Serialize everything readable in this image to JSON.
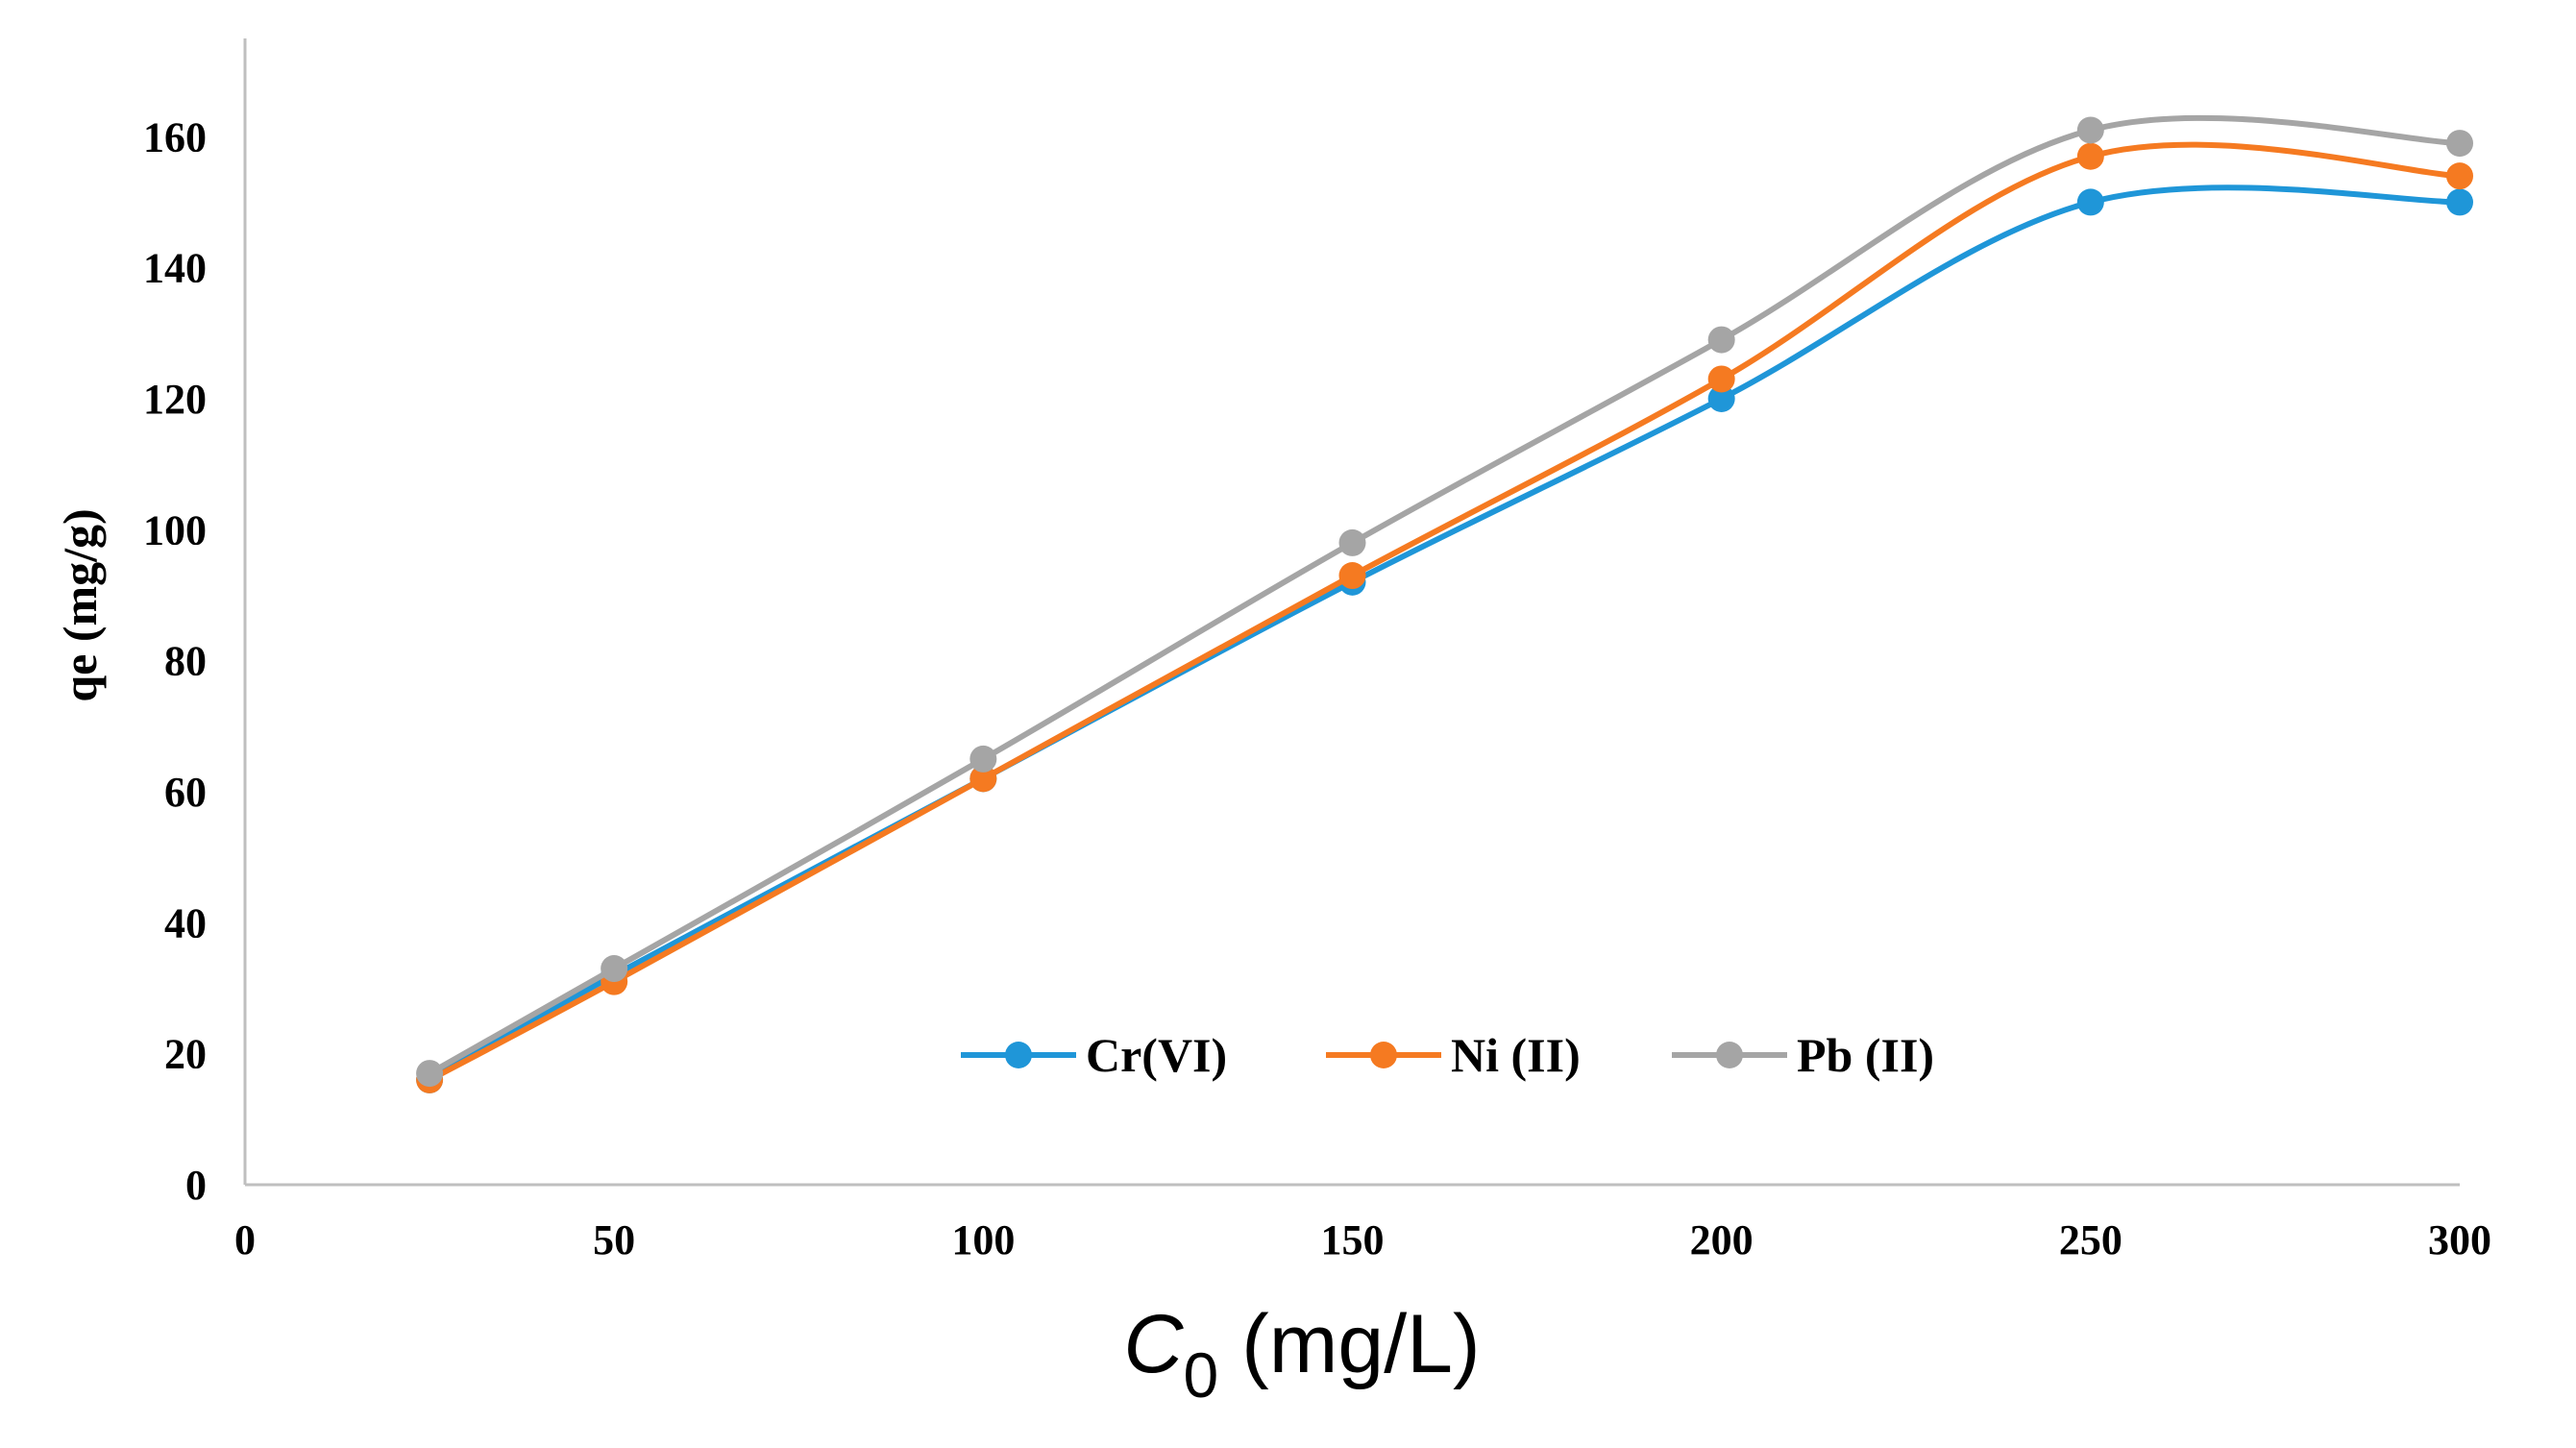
{
  "chart_data": {
    "type": "line",
    "smooth": true,
    "title": "",
    "xlabel": "C0 (mg/L)",
    "xlabel_main": "C",
    "xlabel_sub": "0",
    "xlabel_rest": " (mg/L)",
    "ylabel": "qe (mg/g)",
    "xlim": [
      0,
      300
    ],
    "ylim": [
      0,
      175
    ],
    "xticks": [
      0,
      50,
      100,
      150,
      200,
      250,
      300
    ],
    "yticks": [
      0,
      20,
      40,
      60,
      80,
      100,
      120,
      140,
      160
    ],
    "grid": false,
    "legend_position": "bottom-center",
    "x": [
      25,
      50,
      100,
      150,
      200,
      250,
      300
    ],
    "series": [
      {
        "name": "Cr(VI)",
        "color": "#1f96d8",
        "values": [
          16,
          32,
          62,
          92,
          120,
          150,
          150
        ]
      },
      {
        "name": "Ni (II)",
        "color": "#f57a21",
        "values": [
          16,
          31,
          62,
          93,
          123,
          157,
          154
        ]
      },
      {
        "name": "Pb (II)",
        "color": "#a5a5a5",
        "values": [
          17,
          33,
          65,
          98,
          129,
          161,
          159
        ]
      }
    ]
  }
}
